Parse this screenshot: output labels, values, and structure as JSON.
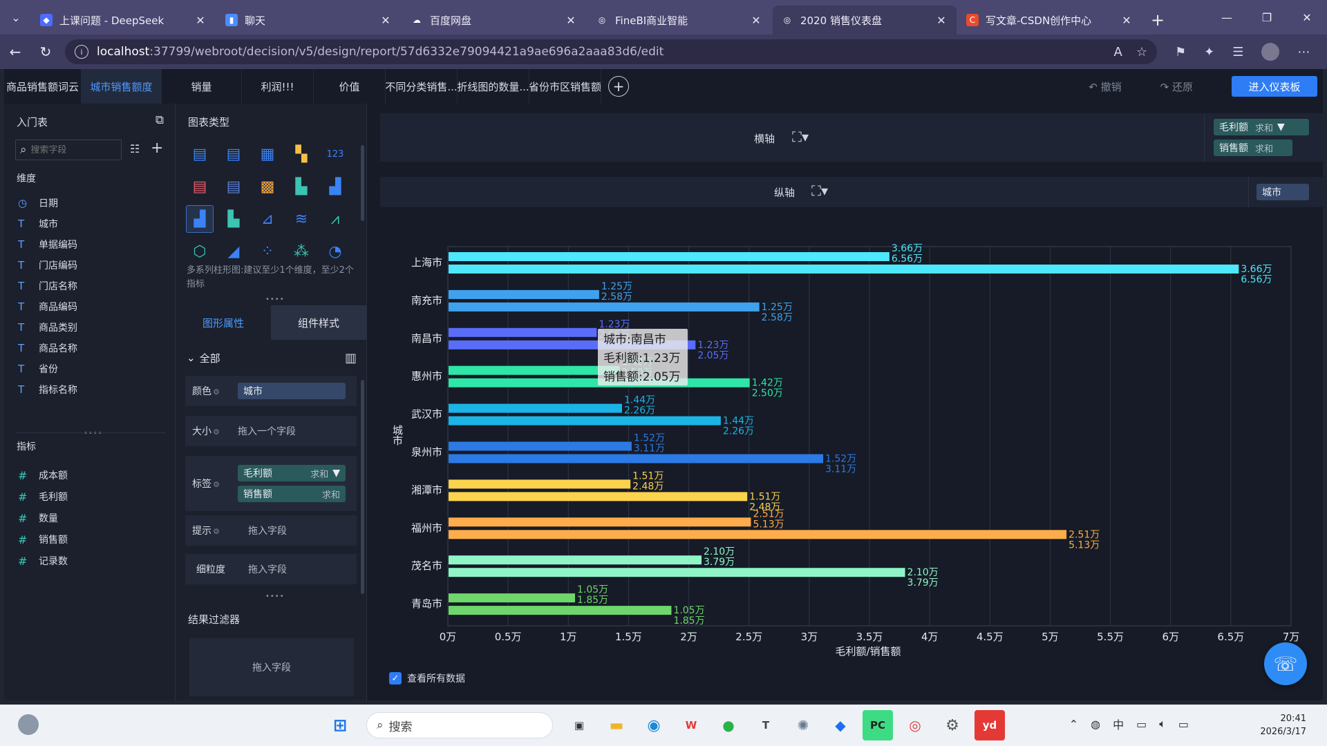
{
  "browser": {
    "tabs": [
      {
        "title": "上课问题 - DeepSeek",
        "color": "#4d6bfe",
        "glyph": "◆"
      },
      {
        "title": "聊天",
        "color": "#4a8cff",
        "glyph": "▮"
      },
      {
        "title": "百度网盘",
        "color": "#ffffff",
        "glyph": "☁"
      },
      {
        "title": "FineBI商业智能",
        "color": "#ffffff",
        "glyph": "◎"
      },
      {
        "title": "2020 销售仪表盘",
        "color": "#ffffff",
        "glyph": "◎",
        "active": true
      },
      {
        "title": "写文章-CSDN创作中心",
        "color": "#e84b2d",
        "glyph": "C"
      }
    ],
    "url_host": "localhost",
    "url_path": ":37799/webroot/decision/v5/design/report/57d6332e79094421a9ae696a2aaa83d6/edit"
  },
  "app": {
    "report_tabs": [
      {
        "label": "商品销售额词云",
        "width": 112
      },
      {
        "label": "城市销售额度",
        "width": 90,
        "active": true
      },
      {
        "label": "销量",
        "width": 90
      },
      {
        "label": "利润!!!",
        "width": 104
      },
      {
        "label": "价值",
        "width": 104
      },
      {
        "label": "不同分类销售...",
        "width": 104
      },
      {
        "label": "折线图的数量...",
        "width": 104
      },
      {
        "label": "省份市区销售额",
        "width": 104
      }
    ],
    "undo": "撤销",
    "redo": "还原",
    "enter_dashboard": "进入仪表板"
  },
  "left_panel": {
    "title": "入门表",
    "search_placeholder": "搜索字段",
    "dimensions_label": "维度",
    "dimensions": [
      "日期",
      "城市",
      "单据编码",
      "门店编码",
      "门店名称",
      "商品编码",
      "商品类别",
      "商品名称",
      "省份",
      "指标名称"
    ],
    "measures_label": "指标",
    "measures": [
      "成本额",
      "毛利额",
      "数量",
      "销售额",
      "记录数"
    ]
  },
  "mid_panel": {
    "title": "图表类型",
    "hint": "多系列柱形图:建议至少1个维度，至少2个指标",
    "tab_shape": "图形属性",
    "tab_style": "组件样式",
    "all": "全部",
    "color_label": "颜色",
    "color_field": "城市",
    "size_label": "大小",
    "size_drop": "拖入一个字段",
    "label_label": "标签",
    "label_field1": "毛利额",
    "label_field2": "销售额",
    "agg": "求和",
    "tip_label": "提示",
    "tip_drop": "拖入字段",
    "grain_label": "细粒度",
    "grain_drop": "拖入字段",
    "filter_title": "结果过滤器",
    "filter_drop": "拖入字段"
  },
  "chart_config": {
    "x_axis_label": "横轴",
    "y_axis_label": "纵轴",
    "x_fields": [
      {
        "name": "毛利额",
        "agg": "求和"
      },
      {
        "name": "销售额",
        "agg": "求和"
      }
    ],
    "y_field": "城市",
    "show_all_data": "查看所有数据"
  },
  "tooltip": {
    "line1": "城市:南昌市",
    "line2": "毛利额:1.23万",
    "line3": "销售额:2.05万"
  },
  "chart_data": {
    "type": "bar",
    "orientation": "horizontal",
    "xlabel": "毛利额/销售额",
    "ylabel": "城市",
    "xlim": [
      0,
      7
    ],
    "x_ticks": [
      "0万",
      "0.5万",
      "1万",
      "1.5万",
      "2万",
      "2.5万",
      "3万",
      "3.5万",
      "4万",
      "4.5万",
      "5万",
      "5.5万",
      "6万",
      "6.5万",
      "7万"
    ],
    "categories": [
      "上海市",
      "南充市",
      "南昌市",
      "惠州市",
      "武汉市",
      "泉州市",
      "湘潭市",
      "福州市",
      "茂名市",
      "青岛市"
    ],
    "colors": [
      "#4de8fb",
      "#3fa2ee",
      "#5a6dfa",
      "#2ee6a6",
      "#1bb4e6",
      "#2c7ae6",
      "#fcd34d",
      "#ffac4a",
      "#8ff5c6",
      "#6ed66a"
    ],
    "series": [
      {
        "name": "毛利额",
        "values": [
          3.66,
          1.25,
          1.23,
          1.42,
          1.44,
          1.52,
          1.51,
          2.51,
          2.1,
          1.05
        ]
      },
      {
        "name": "销售额",
        "values": [
          6.56,
          2.58,
          2.05,
          2.5,
          2.26,
          3.11,
          2.48,
          5.13,
          3.79,
          1.85
        ]
      }
    ],
    "value_labels": {
      "profit": [
        "3.66万",
        "1.25万",
        "1.23万",
        "1.42万",
        "1.44万",
        "1.52万",
        "1.51万",
        "2.51万",
        "2.10万",
        "1.05万"
      ],
      "sales": [
        "6.56万",
        "2.58万",
        "2.05万",
        "2.50万",
        "2.26万",
        "3.11万",
        "2.48万",
        "5.13万",
        "3.79万",
        "1.85万"
      ]
    }
  },
  "taskbar": {
    "search": "搜索",
    "time": "20:41",
    "date": "2026/3/17",
    "ime": "中"
  }
}
